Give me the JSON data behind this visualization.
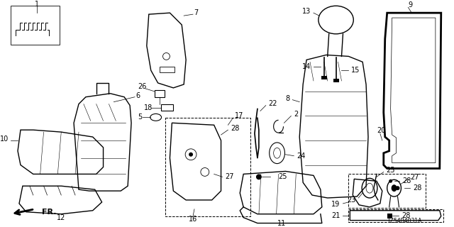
{
  "bg_color": "#ffffff",
  "line_color": "#000000",
  "diagram_code": "TZ54B4031A",
  "gray": "#888888",
  "darkgray": "#555555"
}
